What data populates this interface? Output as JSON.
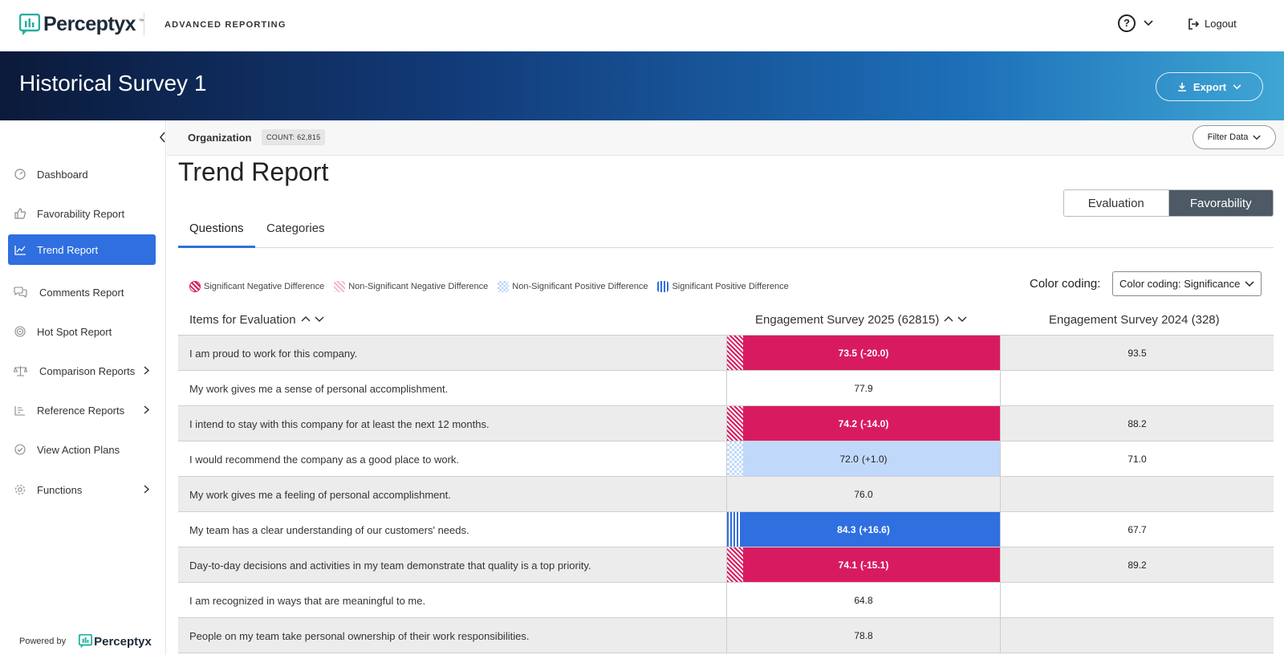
{
  "topbar": {
    "brand": "Perceptyx",
    "app_name": "ADVANCED REPORTING",
    "help_label": "?",
    "logout_label": "Logout"
  },
  "banner": {
    "title": "Historical Survey 1",
    "export_label": "Export"
  },
  "sidebar": {
    "items": [
      {
        "label": "Dashboard",
        "icon": "gauge-icon"
      },
      {
        "label": "Favorability Report",
        "icon": "thumbs-up-icon"
      },
      {
        "label": "Trend Report",
        "icon": "line-chart-icon"
      },
      {
        "label": "Comments Report",
        "icon": "comments-icon"
      },
      {
        "label": "Hot Spot Report",
        "icon": "target-icon"
      },
      {
        "label": "Comparison Reports",
        "icon": "scale-icon"
      },
      {
        "label": "Reference Reports",
        "icon": "bar-chart-icon"
      },
      {
        "label": "View Action Plans",
        "icon": "check-circle-icon"
      },
      {
        "label": "Functions",
        "icon": "gear-icon"
      }
    ],
    "powered_by": "Powered by",
    "powered_brand": "Perceptyx"
  },
  "orgbar": {
    "label": "Organization",
    "count": "COUNT: 62,815",
    "filter_label": "Filter Data"
  },
  "page": {
    "title": "Trend Report",
    "toggle_off": "Evaluation",
    "toggle_on": "Favorability",
    "tabs": [
      "Questions",
      "Categories"
    ]
  },
  "legend": {
    "sig_neg": "Significant Negative Difference",
    "nonsig_neg": "Non-Significant Negative Difference",
    "nonsig_pos": "Non-Significant Positive Difference",
    "sig_pos": "Significant Positive Difference"
  },
  "color_coding": {
    "label": "Color coding:",
    "value": "Color coding: Significance"
  },
  "table": {
    "headers": [
      "Items for Evaluation",
      "Engagement Survey 2025 (62815)",
      "Engagement Survey 2024 (328)"
    ],
    "rows": [
      {
        "q": "I am proud to work for this company.",
        "v2025": "73.5",
        "diff": "(-20.0)",
        "v2024": "93.5",
        "style": "sneg"
      },
      {
        "q": "My work gives me a sense of personal accomplishment.",
        "v2025": "77.9",
        "diff": "",
        "v2024": "",
        "style": "plain"
      },
      {
        "q": "I intend to stay with this company for at least the next 12 months.",
        "v2025": "74.2",
        "diff": "(-14.0)",
        "v2024": "88.2",
        "style": "sneg"
      },
      {
        "q": "I would recommend the company as a good place to work.",
        "v2025": "72.0",
        "diff": "(+1.0)",
        "v2024": "71.0",
        "style": "npos"
      },
      {
        "q": "My work gives me a feeling of personal accomplishment.",
        "v2025": "76.0",
        "diff": "",
        "v2024": "",
        "style": "plain"
      },
      {
        "q": "My team has a clear understanding of our customers' needs.",
        "v2025": "84.3",
        "diff": "(+16.6)",
        "v2024": "67.7",
        "style": "spos"
      },
      {
        "q": "Day-to-day decisions and activities in my team demonstrate that quality is a top priority.",
        "v2025": "74.1",
        "diff": "(-15.1)",
        "v2024": "89.2",
        "style": "sneg"
      },
      {
        "q": "I am recognized in ways that are meaningful to me.",
        "v2025": "64.8",
        "diff": "",
        "v2024": "",
        "style": "plain"
      },
      {
        "q": "People on my team take personal ownership of their work responsibilities.",
        "v2025": "78.8",
        "diff": "",
        "v2024": "",
        "style": "plain"
      }
    ]
  },
  "colors": {
    "accent": "#2f6fe0",
    "sig_negative": "#d81b60",
    "nonsig_positive": "#c0d9fb",
    "toggle_active": "#4d5965"
  }
}
